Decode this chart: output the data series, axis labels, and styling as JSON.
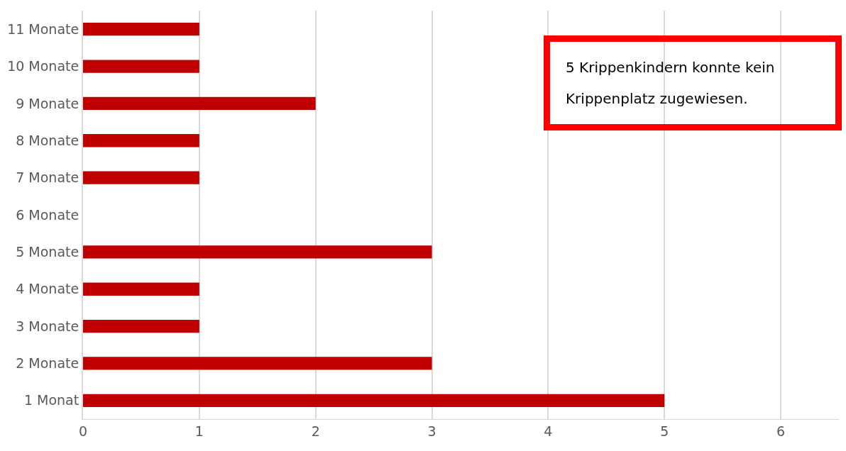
{
  "chart_data": {
    "type": "bar",
    "orientation": "horizontal",
    "categories": [
      "11 Monate",
      "10 Monate",
      "9 Monate",
      "8 Monate",
      "7 Monate",
      "6 Monate",
      "5 Monate",
      "4 Monate",
      "3 Monate",
      "2 Monate",
      "1 Monat"
    ],
    "values": [
      1,
      1,
      2,
      1,
      1,
      0,
      3,
      1,
      1,
      3,
      5
    ],
    "color": "#c00000",
    "xlim": [
      0,
      6.5
    ],
    "xticks": [
      0,
      1,
      2,
      3,
      4,
      5,
      6
    ],
    "grid": "x",
    "annotations": [
      "5 Krippenkindern konnte kein Krippenplatz zugewiesen."
    ]
  }
}
